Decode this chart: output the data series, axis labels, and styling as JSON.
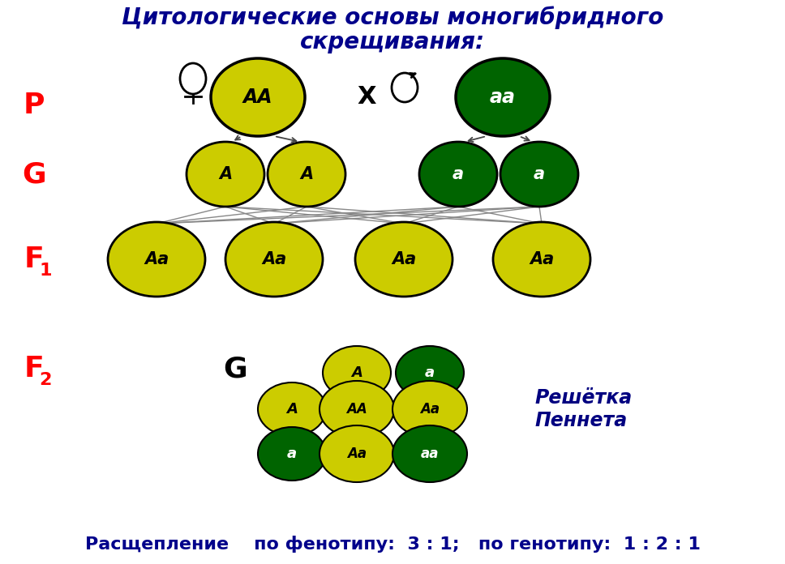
{
  "title_line1": "Цитологические основы моногибридного",
  "title_line2": "скрещивания:",
  "title_color": "#00008B",
  "bg_color": "#FFFFFF",
  "yellow_color": "#CCCC00",
  "green_dark": "#006400",
  "white": "#FFFFFF",
  "black": "#000000",
  "red": "#FF0000",
  "navy": "#000080",
  "bottom_text": "Расщепление    по фенотипу:  3 : 1;   по генотипу:  1 : 2 : 1",
  "pennett_text": "Решётка\nПеннета"
}
